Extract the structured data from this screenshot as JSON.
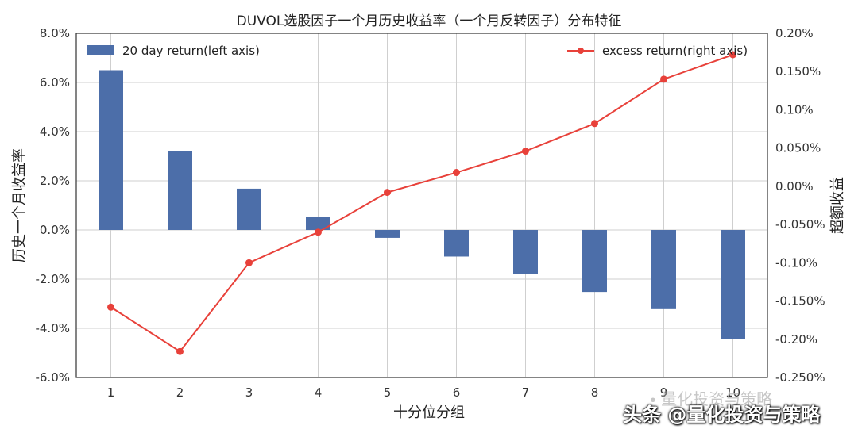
{
  "chart_data": {
    "type": "bar",
    "title": "DUVOL选股因子一个月历史收益率（一个月反转因子）分布特征",
    "xlabel": "十分位分组",
    "ylabel": "历史一个月收益率",
    "y2label": "超额收益",
    "categories": [
      "1",
      "2",
      "3",
      "4",
      "5",
      "6",
      "7",
      "8",
      "9",
      "10"
    ],
    "ylim": [
      -0.06,
      0.08
    ],
    "y2lim": [
      -0.0025,
      0.002
    ],
    "yticks": [
      "-6.0%",
      "-4.0%",
      "-2.0%",
      "0.0%",
      "2.0%",
      "4.0%",
      "6.0%",
      "8.0%"
    ],
    "y2ticks": [
      "-0.250%",
      "-0.20%",
      "-0.150%",
      "-0.10%",
      "-0.050%",
      "0.00%",
      "0.050%",
      "0.10%",
      "0.150%",
      "0.20%"
    ],
    "series": [
      {
        "name": "20 day return(left axis)",
        "type": "bar",
        "axis": "left",
        "color": "#4c6ea9",
        "values": [
          0.065,
          0.0322,
          0.0168,
          0.0052,
          -0.0032,
          -0.0108,
          -0.0178,
          -0.0252,
          -0.0322,
          -0.0443
        ]
      },
      {
        "name": "excess return(right axis)",
        "type": "line",
        "axis": "right",
        "color": "#e8413a",
        "values": [
          -0.00158,
          -0.00216,
          -0.001,
          -0.0006,
          -8e-05,
          0.00018,
          0.00046,
          0.00082,
          0.0014,
          0.00172
        ]
      }
    ],
    "grid": true,
    "legend": [
      "top-left",
      "top-right"
    ]
  },
  "watermark": {
    "top_text": "量化投资与策略",
    "bottom_text": "头条 @量化投资与策略"
  }
}
